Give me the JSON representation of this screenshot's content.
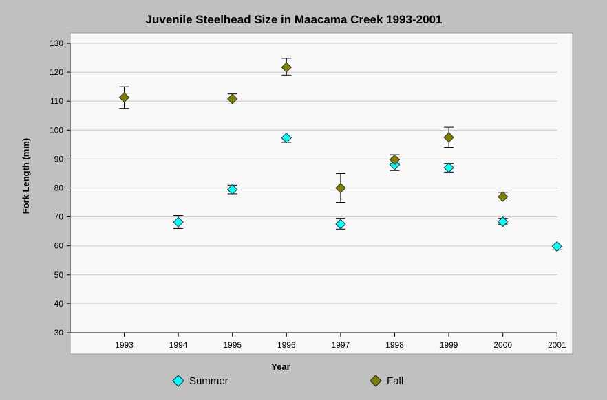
{
  "chart_data": {
    "type": "scatter",
    "title": "Juvenile Steelhead Size in Maacama Creek 1993-2001",
    "xlabel": "Year",
    "ylabel": "Fork Length (mm)",
    "categories": [
      "1993",
      "1994",
      "1995",
      "1996",
      "1997",
      "1998",
      "1999",
      "2000",
      "2001"
    ],
    "ylim": [
      30,
      130
    ],
    "yticks": [
      30,
      40,
      50,
      60,
      70,
      80,
      90,
      100,
      110,
      120,
      130
    ],
    "grid": true,
    "legend_position": "bottom",
    "series": [
      {
        "name": "Summer",
        "color": "#00ffff",
        "marker": "diamond",
        "values": [
          null,
          68.2,
          79.5,
          97.3,
          67.5,
          88.0,
          87.0,
          68.3,
          59.8
        ],
        "error_low": [
          null,
          66.0,
          78.0,
          95.8,
          65.8,
          86.0,
          85.5,
          67.5,
          58.8
        ],
        "error_high": [
          null,
          70.5,
          81.0,
          99.0,
          69.5,
          90.0,
          88.5,
          69.5,
          61.0
        ]
      },
      {
        "name": "Fall",
        "color": "#808000",
        "marker": "diamond",
        "values": [
          111.3,
          null,
          110.8,
          121.7,
          80.0,
          89.8,
          97.5,
          77.0,
          null
        ],
        "error_low": [
          107.5,
          null,
          109.0,
          119.0,
          75.0,
          88.5,
          94.0,
          75.5,
          null
        ],
        "error_high": [
          115.0,
          null,
          112.5,
          124.8,
          85.0,
          91.5,
          101.0,
          78.5,
          null
        ]
      }
    ]
  }
}
